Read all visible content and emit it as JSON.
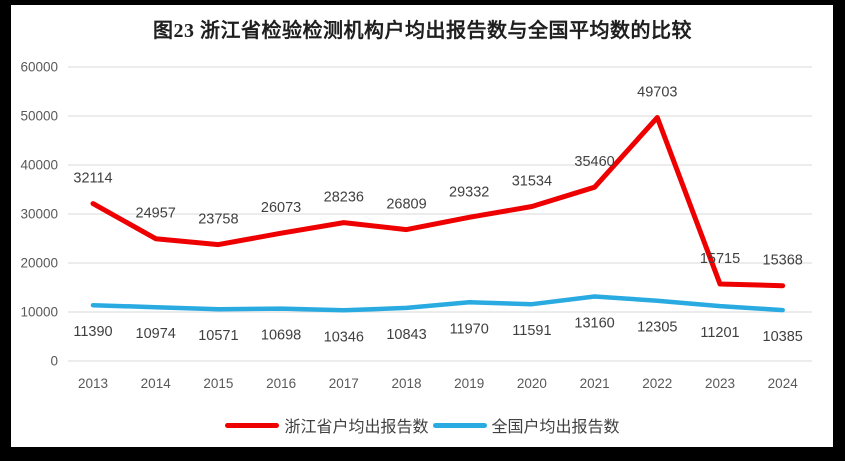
{
  "title": "图23  浙江省检验检测机构户均出报告数与全国平均数的比较",
  "chart_data": {
    "type": "line",
    "categories": [
      "2013",
      "2014",
      "2015",
      "2016",
      "2017",
      "2018",
      "2019",
      "2020",
      "2021",
      "2022",
      "2023",
      "2024"
    ],
    "series": [
      {
        "name": "浙江省户均出报告数",
        "color": "#ee0000",
        "stroke_width": 5,
        "label_side": "above",
        "values": [
          32114,
          24957,
          23758,
          26073,
          28236,
          26809,
          29332,
          31534,
          35460,
          49703,
          15715,
          15368
        ]
      },
      {
        "name": "全国户均出报告数",
        "color": "#29abe2",
        "stroke_width": 4.5,
        "label_side": "below",
        "values": [
          11390,
          10974,
          10571,
          10698,
          10346,
          10843,
          11970,
          11591,
          13160,
          12305,
          11201,
          10385
        ]
      }
    ],
    "ylim": [
      0,
      60000
    ],
    "ytick_step": 10000,
    "yticks": [
      "0",
      "10000",
      "20000",
      "30000",
      "40000",
      "50000",
      "60000"
    ],
    "grid": true,
    "legend_position": "bottom",
    "xlabel": "",
    "ylabel": "",
    "colors": {
      "grid": "#d9d9d9",
      "axis_text": "#595959",
      "data_label_text": "#3f3f3f",
      "frame": "#000000"
    }
  },
  "legend": {
    "items": [
      {
        "label": "浙江省户均出报告数",
        "color": "#ee0000"
      },
      {
        "label": "全国户均出报告数",
        "color": "#29abe2"
      }
    ]
  }
}
